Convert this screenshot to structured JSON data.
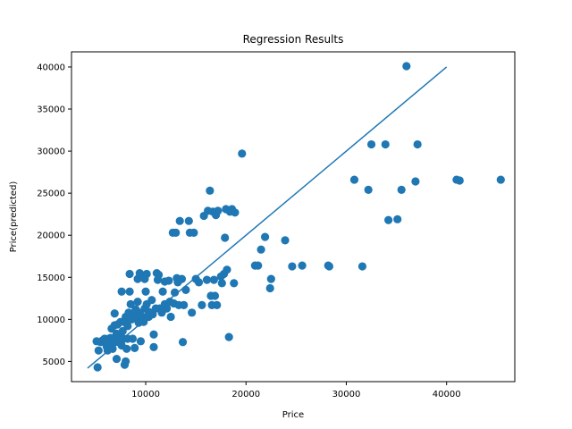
{
  "chart_data": {
    "type": "scatter",
    "title": "Regression Results",
    "xlabel": "Price",
    "ylabel": "Price(predicted)",
    "xlim": [
      2600,
      46800
    ],
    "ylim": [
      2600,
      41800
    ],
    "x_ticks": [
      10000,
      20000,
      30000,
      40000
    ],
    "y_ticks": [
      5000,
      10000,
      15000,
      20000,
      25000,
      30000,
      35000,
      40000
    ],
    "grid": false,
    "color": "#1f77b4",
    "fit_line": {
      "x": [
        4200,
        40000
      ],
      "y": [
        4200,
        40000
      ]
    },
    "points": [
      [
        5200,
        4300
      ],
      [
        5100,
        7400
      ],
      [
        5300,
        6300
      ],
      [
        5500,
        7300
      ],
      [
        5700,
        7500
      ],
      [
        5900,
        7700
      ],
      [
        6100,
        6800
      ],
      [
        6200,
        6300
      ],
      [
        6300,
        7700
      ],
      [
        6400,
        7000
      ],
      [
        6500,
        7800
      ],
      [
        6600,
        8900
      ],
      [
        6700,
        6500
      ],
      [
        6800,
        7200
      ],
      [
        6900,
        9300
      ],
      [
        6900,
        10700
      ],
      [
        7000,
        7600
      ],
      [
        7100,
        8300
      ],
      [
        7100,
        5300
      ],
      [
        7200,
        9400
      ],
      [
        7300,
        7300
      ],
      [
        7400,
        8000
      ],
      [
        7500,
        9700
      ],
      [
        7600,
        6900
      ],
      [
        7600,
        13300
      ],
      [
        7700,
        8600
      ],
      [
        7800,
        7700
      ],
      [
        7900,
        4600
      ],
      [
        8000,
        5000
      ],
      [
        8000,
        10300
      ],
      [
        8000,
        9600
      ],
      [
        8100,
        6500
      ],
      [
        8200,
        7700
      ],
      [
        8200,
        9200
      ],
      [
        8300,
        10800
      ],
      [
        8400,
        13300
      ],
      [
        8400,
        15400
      ],
      [
        8500,
        11800
      ],
      [
        8600,
        10000
      ],
      [
        8700,
        7700
      ],
      [
        8800,
        10500
      ],
      [
        8900,
        6600
      ],
      [
        9000,
        11200
      ],
      [
        9100,
        10300
      ],
      [
        9200,
        12100
      ],
      [
        9200,
        14800
      ],
      [
        9300,
        9600
      ],
      [
        9400,
        15500
      ],
      [
        9400,
        10800
      ],
      [
        9500,
        7400
      ],
      [
        9600,
        15100
      ],
      [
        9700,
        10300
      ],
      [
        9800,
        9700
      ],
      [
        9900,
        14800
      ],
      [
        9900,
        11300
      ],
      [
        10000,
        13300
      ],
      [
        10100,
        11800
      ],
      [
        10100,
        15400
      ],
      [
        10300,
        10300
      ],
      [
        10300,
        10900
      ],
      [
        10400,
        10800
      ],
      [
        10600,
        12300
      ],
      [
        10700,
        10600
      ],
      [
        10800,
        6700
      ],
      [
        10800,
        8200
      ],
      [
        11000,
        11300
      ],
      [
        11100,
        15500
      ],
      [
        11200,
        14700
      ],
      [
        11300,
        15300
      ],
      [
        11400,
        11300
      ],
      [
        11600,
        10800
      ],
      [
        11700,
        13300
      ],
      [
        11900,
        14500
      ],
      [
        11900,
        11800
      ],
      [
        12100,
        11300
      ],
      [
        12300,
        14600
      ],
      [
        12400,
        12100
      ],
      [
        12500,
        10300
      ],
      [
        12700,
        20300
      ],
      [
        12800,
        11900
      ],
      [
        12900,
        13200
      ],
      [
        13000,
        20300
      ],
      [
        13100,
        14900
      ],
      [
        13200,
        14400
      ],
      [
        13300,
        11700
      ],
      [
        13400,
        21700
      ],
      [
        13600,
        14800
      ],
      [
        13700,
        7300
      ],
      [
        13800,
        11700
      ],
      [
        14000,
        13500
      ],
      [
        14300,
        21700
      ],
      [
        14400,
        20300
      ],
      [
        14600,
        10800
      ],
      [
        14800,
        20300
      ],
      [
        15000,
        14800
      ],
      [
        15300,
        14400
      ],
      [
        15600,
        11700
      ],
      [
        15800,
        22300
      ],
      [
        16100,
        14700
      ],
      [
        16200,
        22900
      ],
      [
        16400,
        25300
      ],
      [
        16500,
        12800
      ],
      [
        16600,
        11700
      ],
      [
        16700,
        22800
      ],
      [
        16800,
        14700
      ],
      [
        16900,
        12800
      ],
      [
        17000,
        22400
      ],
      [
        17100,
        11700
      ],
      [
        17200,
        22900
      ],
      [
        17500,
        15100
      ],
      [
        17600,
        14300
      ],
      [
        17800,
        15400
      ],
      [
        17900,
        19700
      ],
      [
        18000,
        23100
      ],
      [
        18100,
        15900
      ],
      [
        18300,
        7900
      ],
      [
        18400,
        22800
      ],
      [
        18600,
        23100
      ],
      [
        18800,
        14300
      ],
      [
        18900,
        22700
      ],
      [
        19600,
        29700
      ],
      [
        20900,
        16400
      ],
      [
        21200,
        16400
      ],
      [
        21500,
        18300
      ],
      [
        21900,
        19800
      ],
      [
        22400,
        13700
      ],
      [
        22500,
        14800
      ],
      [
        23900,
        19400
      ],
      [
        24600,
        16300
      ],
      [
        25600,
        16400
      ],
      [
        28200,
        16400
      ],
      [
        28300,
        16300
      ],
      [
        30800,
        26600
      ],
      [
        31600,
        16300
      ],
      [
        32200,
        25400
      ],
      [
        32500,
        30800
      ],
      [
        33900,
        30800
      ],
      [
        34200,
        21800
      ],
      [
        35100,
        21900
      ],
      [
        35500,
        25400
      ],
      [
        36000,
        40100
      ],
      [
        36900,
        26400
      ],
      [
        37100,
        30800
      ],
      [
        41000,
        26600
      ],
      [
        41300,
        26500
      ],
      [
        45400,
        26600
      ]
    ]
  }
}
